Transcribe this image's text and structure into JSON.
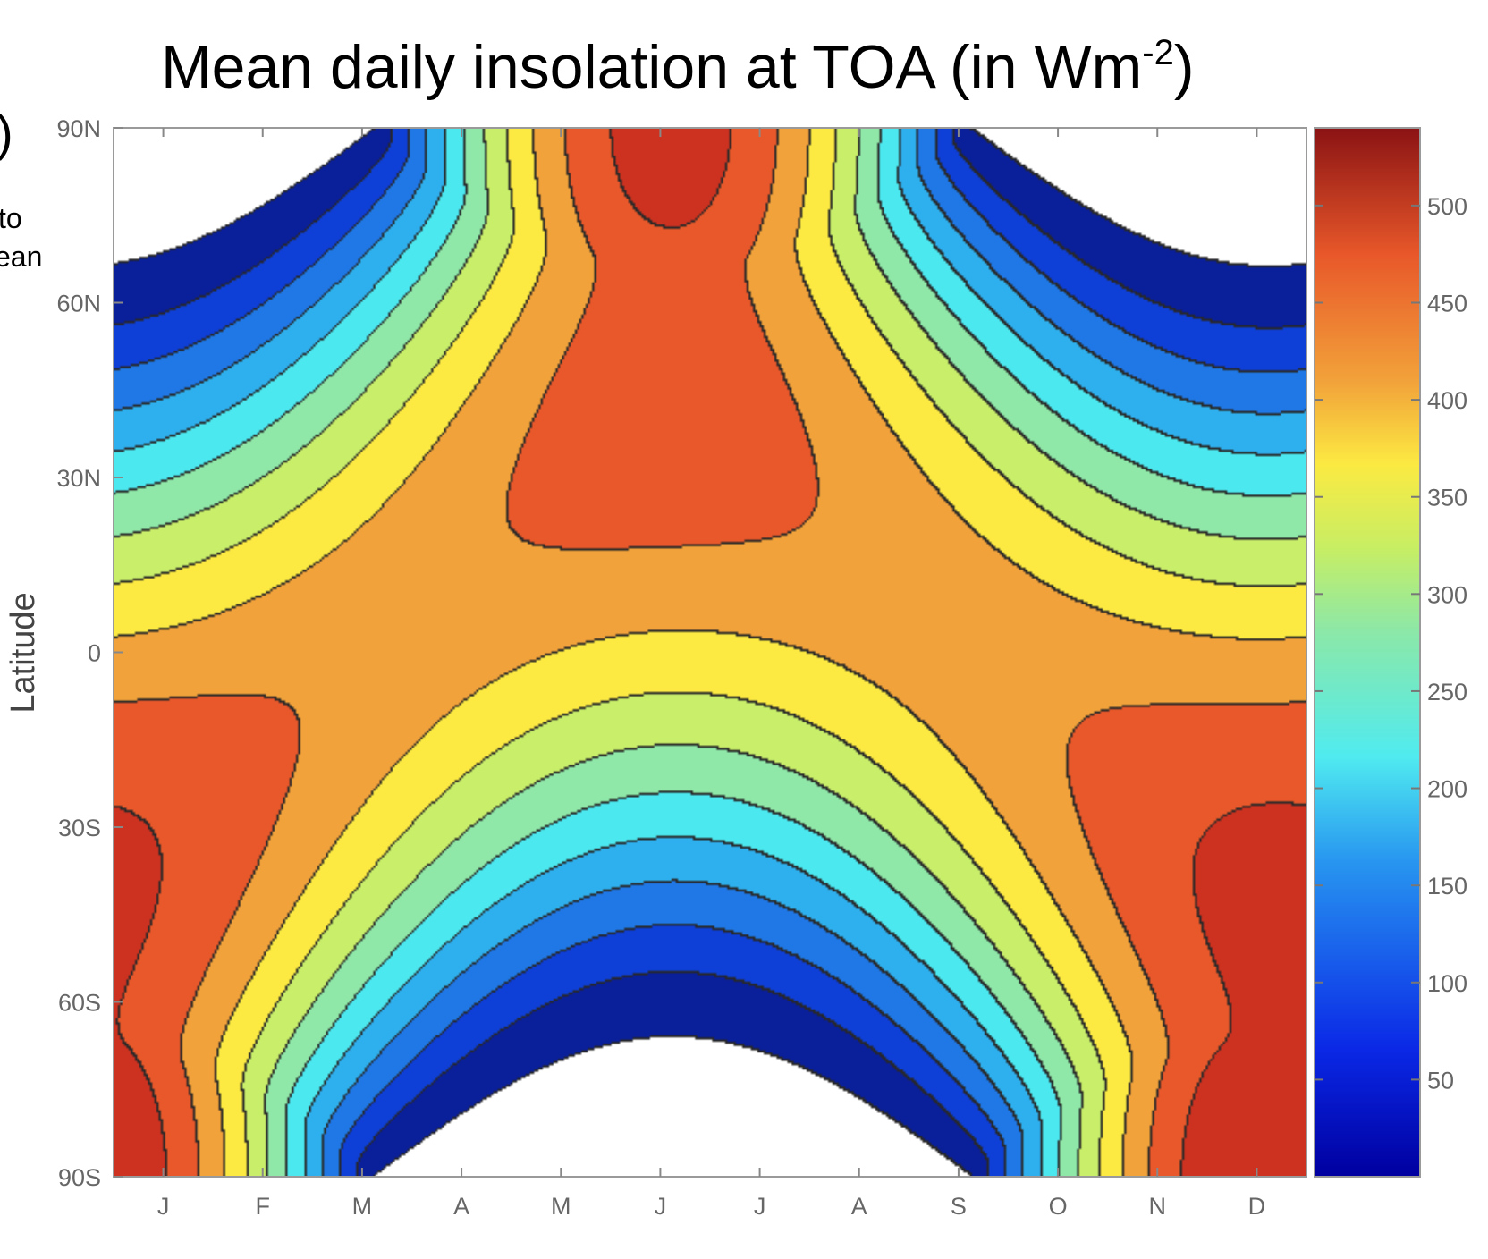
{
  "title": {
    "main": "Mean daily insolation at TOA (in Wm",
    "sup": "-2",
    "close": ")"
  },
  "left_fragments": [
    ")",
    "to",
    "ean"
  ],
  "chart_data": {
    "type": "heatmap",
    "title": "Mean daily insolation at TOA (in Wm-2)",
    "xlabel": "",
    "ylabel": "Latitude",
    "x_categories": [
      "J",
      "F",
      "M",
      "A",
      "M",
      "J",
      "J",
      "A",
      "S",
      "O",
      "N",
      "D"
    ],
    "y_ticks": [
      "90N",
      "60N",
      "30N",
      "0",
      "30S",
      "60S",
      "90S"
    ],
    "y_range": [
      -90,
      90
    ],
    "colorbar": {
      "ticks": [
        50,
        100,
        150,
        200,
        250,
        300,
        350,
        400,
        450,
        500
      ],
      "range": [
        0,
        540
      ]
    },
    "contour_levels": [
      0,
      50,
      100,
      150,
      200,
      250,
      300,
      350,
      400,
      450,
      500
    ],
    "colors": [
      "#0a1f9a",
      "#0e3fd6",
      "#1f78e6",
      "#2fb0ee",
      "#4ce8f0",
      "#8fe8a8",
      "#c8ee6a",
      "#fcea42",
      "#f2a23a",
      "#e8582a",
      "#cd3220"
    ]
  }
}
